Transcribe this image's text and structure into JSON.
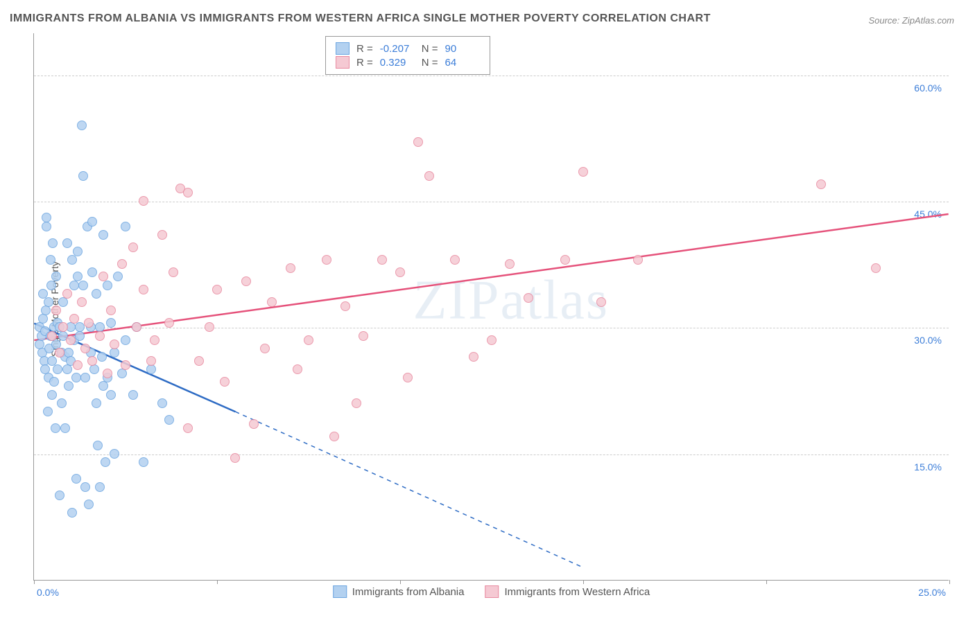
{
  "title": "IMMIGRANTS FROM ALBANIA VS IMMIGRANTS FROM WESTERN AFRICA SINGLE MOTHER POVERTY CORRELATION CHART",
  "source": "Source: ZipAtlas.com",
  "watermark": "ZIPatlas",
  "ylabel": "Single Mother Poverty",
  "xlim": [
    0,
    25
  ],
  "ylim": [
    0,
    65
  ],
  "yticks": [
    15,
    30,
    45,
    60
  ],
  "ytick_labels": [
    "15.0%",
    "30.0%",
    "45.0%",
    "60.0%"
  ],
  "xticks": [
    0,
    5,
    10,
    15,
    20,
    25
  ],
  "xtick_labels_visible": {
    "0": "0.0%",
    "25": "25.0%"
  },
  "series": [
    {
      "name": "Immigrants from Albania",
      "fill": "#b3d1f0",
      "stroke": "#6ca5e0",
      "line_color": "#2d6bc4",
      "R": "-0.207",
      "N": "90",
      "trend": {
        "x1": 0,
        "y1": 30.5,
        "x2": 5.5,
        "y2": 20.0,
        "solid_end_x": 5.5,
        "dash_end_x": 15.0,
        "dash_end_y": 1.5
      },
      "points": [
        [
          0.15,
          28
        ],
        [
          0.15,
          30
        ],
        [
          0.2,
          29
        ],
        [
          0.22,
          27
        ],
        [
          0.25,
          31
        ],
        [
          0.25,
          34
        ],
        [
          0.28,
          26
        ],
        [
          0.3,
          29.5
        ],
        [
          0.3,
          25
        ],
        [
          0.32,
          32
        ],
        [
          0.35,
          43
        ],
        [
          0.35,
          42
        ],
        [
          0.38,
          20
        ],
        [
          0.4,
          33
        ],
        [
          0.4,
          24
        ],
        [
          0.42,
          27.5
        ],
        [
          0.45,
          29
        ],
        [
          0.45,
          38
        ],
        [
          0.48,
          35
        ],
        [
          0.5,
          26
        ],
        [
          0.5,
          22
        ],
        [
          0.52,
          40
        ],
        [
          0.55,
          23.5
        ],
        [
          0.55,
          30
        ],
        [
          0.58,
          18
        ],
        [
          0.6,
          28
        ],
        [
          0.6,
          36
        ],
        [
          0.65,
          25
        ],
        [
          0.65,
          30.5
        ],
        [
          0.7,
          30
        ],
        [
          0.7,
          10
        ],
        [
          0.75,
          27
        ],
        [
          0.75,
          21
        ],
        [
          0.8,
          33
        ],
        [
          0.8,
          29
        ],
        [
          0.85,
          26.5
        ],
        [
          0.85,
          18
        ],
        [
          0.9,
          25
        ],
        [
          0.9,
          40
        ],
        [
          0.95,
          27
        ],
        [
          0.95,
          23
        ],
        [
          1.0,
          30
        ],
        [
          1.0,
          26
        ],
        [
          1.05,
          8
        ],
        [
          1.05,
          38
        ],
        [
          1.1,
          28.5
        ],
        [
          1.1,
          35
        ],
        [
          1.15,
          24
        ],
        [
          1.15,
          12
        ],
        [
          1.2,
          39
        ],
        [
          1.2,
          36
        ],
        [
          1.25,
          29
        ],
        [
          1.25,
          30
        ],
        [
          1.3,
          54
        ],
        [
          1.35,
          48
        ],
        [
          1.35,
          35
        ],
        [
          1.4,
          24
        ],
        [
          1.4,
          11
        ],
        [
          1.45,
          42
        ],
        [
          1.5,
          9
        ],
        [
          1.55,
          30
        ],
        [
          1.55,
          27
        ],
        [
          1.6,
          42.5
        ],
        [
          1.6,
          36.5
        ],
        [
          1.65,
          25
        ],
        [
          1.7,
          34
        ],
        [
          1.7,
          21
        ],
        [
          1.75,
          16
        ],
        [
          1.8,
          30
        ],
        [
          1.8,
          11
        ],
        [
          1.85,
          26.5
        ],
        [
          1.9,
          23
        ],
        [
          1.9,
          41
        ],
        [
          1.95,
          14
        ],
        [
          2.0,
          24
        ],
        [
          2.0,
          35
        ],
        [
          2.1,
          22
        ],
        [
          2.1,
          30.5
        ],
        [
          2.2,
          27
        ],
        [
          2.2,
          15
        ],
        [
          2.3,
          36
        ],
        [
          2.4,
          24.5
        ],
        [
          2.5,
          28.5
        ],
        [
          2.5,
          42
        ],
        [
          2.7,
          22
        ],
        [
          2.8,
          30
        ],
        [
          3.0,
          14
        ],
        [
          3.2,
          25
        ],
        [
          3.5,
          21
        ],
        [
          3.7,
          19
        ]
      ]
    },
    {
      "name": "Immigrants from Western Africa",
      "fill": "#f5c9d3",
      "stroke": "#e8899f",
      "line_color": "#e5517a",
      "R": "0.329",
      "N": "64",
      "trend": {
        "x1": 0,
        "y1": 28.5,
        "x2": 25,
        "y2": 43.5
      },
      "points": [
        [
          0.5,
          29
        ],
        [
          0.6,
          32
        ],
        [
          0.7,
          27
        ],
        [
          0.8,
          30
        ],
        [
          0.9,
          34
        ],
        [
          1.0,
          28.5
        ],
        [
          1.1,
          31
        ],
        [
          1.2,
          25.5
        ],
        [
          1.3,
          33
        ],
        [
          1.4,
          27.5
        ],
        [
          1.5,
          30.5
        ],
        [
          1.6,
          26
        ],
        [
          1.8,
          29
        ],
        [
          1.9,
          36
        ],
        [
          2.0,
          24.5
        ],
        [
          2.1,
          32
        ],
        [
          2.2,
          28
        ],
        [
          2.4,
          37.5
        ],
        [
          2.5,
          25.5
        ],
        [
          2.7,
          39.5
        ],
        [
          2.8,
          30
        ],
        [
          3.0,
          34.5
        ],
        [
          3.0,
          45
        ],
        [
          3.2,
          26
        ],
        [
          3.3,
          28.5
        ],
        [
          3.5,
          41
        ],
        [
          3.7,
          30.5
        ],
        [
          3.8,
          36.5
        ],
        [
          4.0,
          46.5
        ],
        [
          4.2,
          46
        ],
        [
          4.2,
          18
        ],
        [
          4.5,
          26
        ],
        [
          4.8,
          30
        ],
        [
          5.0,
          34.5
        ],
        [
          5.2,
          23.5
        ],
        [
          5.5,
          14.5
        ],
        [
          5.8,
          35.5
        ],
        [
          6.0,
          18.5
        ],
        [
          6.3,
          27.5
        ],
        [
          6.5,
          33
        ],
        [
          7.0,
          37
        ],
        [
          7.2,
          25
        ],
        [
          7.5,
          28.5
        ],
        [
          8.0,
          38
        ],
        [
          8.2,
          17
        ],
        [
          8.5,
          32.5
        ],
        [
          8.8,
          21
        ],
        [
          9.0,
          29
        ],
        [
          9.5,
          38
        ],
        [
          10.0,
          36.5
        ],
        [
          10.2,
          24
        ],
        [
          10.5,
          52
        ],
        [
          10.8,
          48
        ],
        [
          11.5,
          38
        ],
        [
          12.0,
          26.5
        ],
        [
          12.5,
          28.5
        ],
        [
          13.0,
          37.5
        ],
        [
          13.5,
          33.5
        ],
        [
          14.5,
          38
        ],
        [
          15.0,
          48.5
        ],
        [
          15.5,
          33
        ],
        [
          16.5,
          38
        ],
        [
          21.5,
          47
        ],
        [
          23.0,
          37
        ]
      ]
    }
  ],
  "legend_bottom": [
    "Immigrants from Albania",
    "Immigrants from Western Africa"
  ],
  "background_color": "#ffffff",
  "grid_color": "#cccccc",
  "axis_color": "#999999",
  "tick_label_color": "#3b7dd8",
  "text_color": "#555555",
  "point_radius": 7,
  "title_fontsize": 16,
  "label_fontsize": 14
}
